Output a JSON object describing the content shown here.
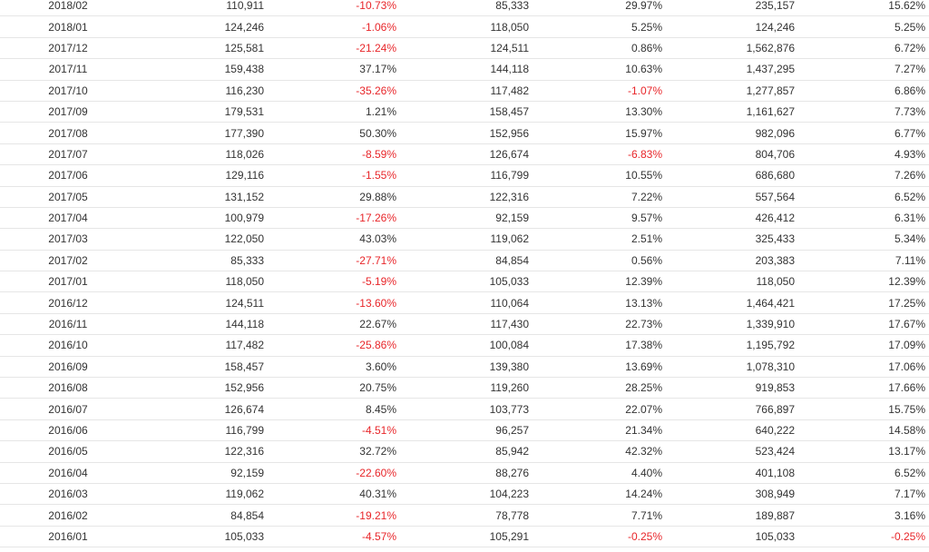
{
  "colors": {
    "text": "#333333",
    "negative": "#e8262a",
    "border": "#e6e6e6"
  },
  "rows": [
    [
      "2018/02",
      "110,911",
      "-10.73%",
      "85,333",
      "29.97%",
      "235,157",
      "15.62%"
    ],
    [
      "2018/01",
      "124,246",
      "-1.06%",
      "118,050",
      "5.25%",
      "124,246",
      "5.25%"
    ],
    [
      "2017/12",
      "125,581",
      "-21.24%",
      "124,511",
      "0.86%",
      "1,562,876",
      "6.72%"
    ],
    [
      "2017/11",
      "159,438",
      "37.17%",
      "144,118",
      "10.63%",
      "1,437,295",
      "7.27%"
    ],
    [
      "2017/10",
      "116,230",
      "-35.26%",
      "117,482",
      "-1.07%",
      "1,277,857",
      "6.86%"
    ],
    [
      "2017/09",
      "179,531",
      "1.21%",
      "158,457",
      "13.30%",
      "1,161,627",
      "7.73%"
    ],
    [
      "2017/08",
      "177,390",
      "50.30%",
      "152,956",
      "15.97%",
      "982,096",
      "6.77%"
    ],
    [
      "2017/07",
      "118,026",
      "-8.59%",
      "126,674",
      "-6.83%",
      "804,706",
      "4.93%"
    ],
    [
      "2017/06",
      "129,116",
      "-1.55%",
      "116,799",
      "10.55%",
      "686,680",
      "7.26%"
    ],
    [
      "2017/05",
      "131,152",
      "29.88%",
      "122,316",
      "7.22%",
      "557,564",
      "6.52%"
    ],
    [
      "2017/04",
      "100,979",
      "-17.26%",
      "92,159",
      "9.57%",
      "426,412",
      "6.31%"
    ],
    [
      "2017/03",
      "122,050",
      "43.03%",
      "119,062",
      "2.51%",
      "325,433",
      "5.34%"
    ],
    [
      "2017/02",
      "85,333",
      "-27.71%",
      "84,854",
      "0.56%",
      "203,383",
      "7.11%"
    ],
    [
      "2017/01",
      "118,050",
      "-5.19%",
      "105,033",
      "12.39%",
      "118,050",
      "12.39%"
    ],
    [
      "2016/12",
      "124,511",
      "-13.60%",
      "110,064",
      "13.13%",
      "1,464,421",
      "17.25%"
    ],
    [
      "2016/11",
      "144,118",
      "22.67%",
      "117,430",
      "22.73%",
      "1,339,910",
      "17.67%"
    ],
    [
      "2016/10",
      "117,482",
      "-25.86%",
      "100,084",
      "17.38%",
      "1,195,792",
      "17.09%"
    ],
    [
      "2016/09",
      "158,457",
      "3.60%",
      "139,380",
      "13.69%",
      "1,078,310",
      "17.06%"
    ],
    [
      "2016/08",
      "152,956",
      "20.75%",
      "119,260",
      "28.25%",
      "919,853",
      "17.66%"
    ],
    [
      "2016/07",
      "126,674",
      "8.45%",
      "103,773",
      "22.07%",
      "766,897",
      "15.75%"
    ],
    [
      "2016/06",
      "116,799",
      "-4.51%",
      "96,257",
      "21.34%",
      "640,222",
      "14.58%"
    ],
    [
      "2016/05",
      "122,316",
      "32.72%",
      "85,942",
      "42.32%",
      "523,424",
      "13.17%"
    ],
    [
      "2016/04",
      "92,159",
      "-22.60%",
      "88,276",
      "4.40%",
      "401,108",
      "6.52%"
    ],
    [
      "2016/03",
      "119,062",
      "40.31%",
      "104,223",
      "14.24%",
      "308,949",
      "7.17%"
    ],
    [
      "2016/02",
      "84,854",
      "-19.21%",
      "78,778",
      "7.71%",
      "189,887",
      "3.16%"
    ],
    [
      "2016/01",
      "105,033",
      "-4.57%",
      "105,291",
      "-0.25%",
      "105,033",
      "-0.25%"
    ]
  ]
}
